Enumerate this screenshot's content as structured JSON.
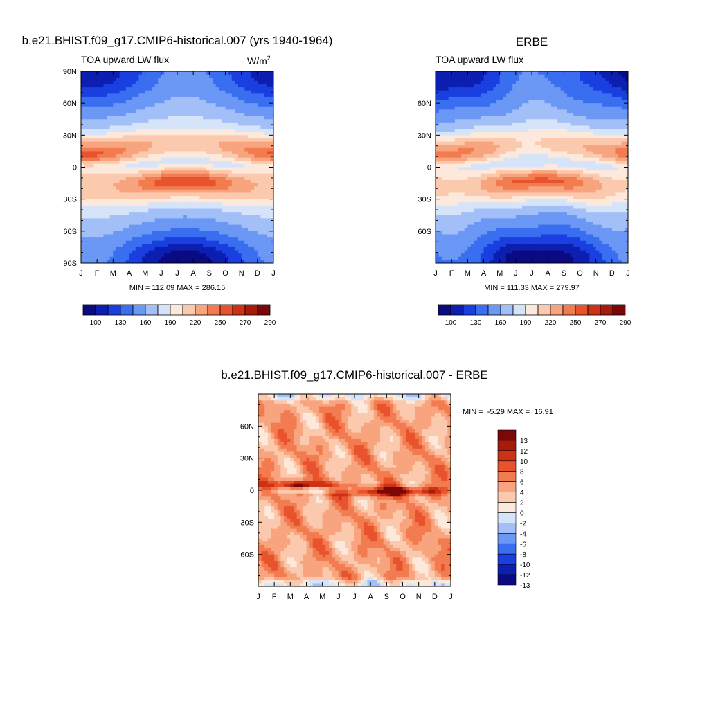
{
  "chart_data": [
    {
      "type": "heatmap",
      "title": "b.e21.BHIST.f09_g17.CMIP6-historical.007 (yrs 1940-1964)",
      "left_string": "TOA upward LW flux",
      "right_string": "W/m",
      "right_string_sup": "2",
      "stats": "MIN = 112.09 MAX = 286.15",
      "x_tick_labels": [
        "J",
        "F",
        "M",
        "A",
        "M",
        "J",
        "J",
        "A",
        "S",
        "O",
        "N",
        "D",
        "J"
      ],
      "y_tick_labels": [
        {
          "lat": 90,
          "label": "90N"
        },
        {
          "lat": 60,
          "label": "60N"
        },
        {
          "lat": 30,
          "label": "30N"
        },
        {
          "lat": 0,
          "label": "0"
        },
        {
          "lat": -30,
          "label": "30S"
        },
        {
          "lat": -60,
          "label": "60S"
        },
        {
          "lat": -90,
          "label": "90S"
        }
      ],
      "colorbar_labels": [
        "100",
        "130",
        "160",
        "190",
        "220",
        "250",
        "270",
        "290"
      ],
      "ylim": [
        -90,
        90
      ],
      "field": "model"
    },
    {
      "type": "heatmap",
      "title": "ERBE",
      "left_string": "TOA upward LW flux",
      "stats": "MIN = 111.33 MAX = 279.97",
      "x_tick_labels": [
        "J",
        "F",
        "M",
        "A",
        "M",
        "J",
        "J",
        "A",
        "S",
        "O",
        "N",
        "D",
        "J"
      ],
      "y_tick_labels": [
        {
          "lat": 60,
          "label": "60N"
        },
        {
          "lat": 30,
          "label": "30N"
        },
        {
          "lat": 0,
          "label": "0"
        },
        {
          "lat": -30,
          "label": "30S"
        },
        {
          "lat": -60,
          "label": "60S"
        }
      ],
      "colorbar_labels": [
        "100",
        "130",
        "160",
        "190",
        "220",
        "250",
        "270",
        "290"
      ],
      "ylim": [
        -90,
        90
      ],
      "field": "obs"
    },
    {
      "type": "heatmap",
      "title": "b.e21.BHIST.f09_g17.CMIP6-historical.007 - ERBE",
      "stats": "MIN =  -5.29 MAX =  16.91",
      "x_tick_labels": [
        "J",
        "F",
        "M",
        "A",
        "M",
        "J",
        "J",
        "A",
        "S",
        "O",
        "N",
        "D",
        "J"
      ],
      "y_tick_labels": [
        {
          "lat": 60,
          "label": "60N"
        },
        {
          "lat": 30,
          "label": "30N"
        },
        {
          "lat": 0,
          "label": "0"
        },
        {
          "lat": -30,
          "label": "30S"
        },
        {
          "lat": -60,
          "label": "60S"
        }
      ],
      "colorbar_labels": [
        "13",
        "12",
        "10",
        "8",
        "6",
        "4",
        "2",
        "0",
        "-2",
        "-4",
        "-6",
        "-8",
        "-10",
        "-12",
        "-13"
      ],
      "ylim": [
        -90,
        90
      ],
      "field": "diff"
    }
  ],
  "colors": {
    "flux_scale": [
      "#0a0a82",
      "#0d1fb0",
      "#1a3fe0",
      "#3a6ef0",
      "#6b97f5",
      "#a3bff8",
      "#d6e4fa",
      "#fde8dc",
      "#fbc9ad",
      "#f7a47f",
      "#f27c50",
      "#e8522c",
      "#cc3214",
      "#a81a0a",
      "#7a0808"
    ],
    "diff_scale": [
      "#0a0a82",
      "#0d1fb0",
      "#1a3fe0",
      "#3a6ef0",
      "#6b97f5",
      "#a3bff8",
      "#d6e4fa",
      "#fde8dc",
      "#fbc9ad",
      "#f7a47f",
      "#f27c50",
      "#e8522c",
      "#cc3214",
      "#a81a0a",
      "#7a0808"
    ]
  }
}
